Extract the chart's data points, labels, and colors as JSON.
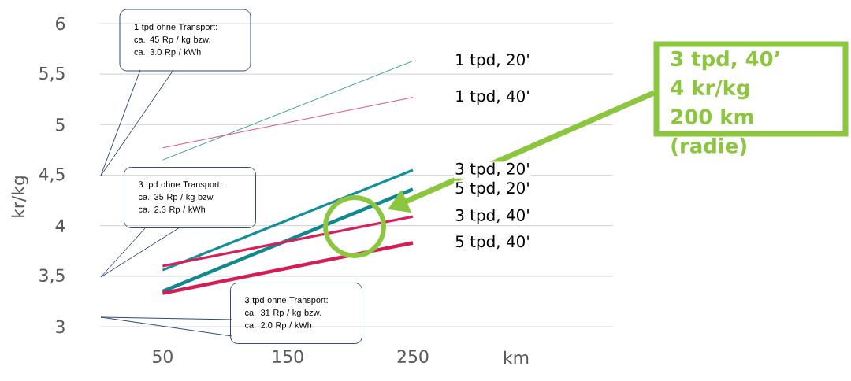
{
  "chart_data": {
    "type": "line",
    "ylabel": "kr/kg",
    "xlabel": "km",
    "xlim": [
      0,
      410
    ],
    "ylim": [
      3,
      6
    ],
    "xticks": [
      50,
      150,
      250
    ],
    "yticks": [
      3,
      {
        "value": 3.5,
        "label": "3,5"
      },
      4,
      {
        "value": 4.5,
        "label": "4,5"
      },
      5,
      {
        "value": 5.5,
        "label": "5,5"
      },
      6
    ],
    "grid": "y",
    "x": [
      50,
      250
    ],
    "series": [
      {
        "name": "1 tpd, 20'",
        "color": "#3a9e9e",
        "values": [
          4.65,
          5.63
        ]
      },
      {
        "name": "1 tpd, 40'",
        "color": "#d9557e",
        "values": [
          4.77,
          5.27
        ]
      },
      {
        "name": "3 tpd, 20'",
        "color": "#128f98",
        "values": [
          3.56,
          4.55
        ]
      },
      {
        "name": "5 tpd, 20'",
        "color": "#0f8890",
        "values": [
          3.35,
          4.36
        ]
      },
      {
        "name": "3 tpd, 40'",
        "color": "#d81f5a",
        "values": [
          3.6,
          4.09
        ]
      },
      {
        "name": "5 tpd, 40'",
        "color": "#d41c55",
        "values": [
          3.33,
          3.83
        ]
      }
    ],
    "annotations": [
      "1 tpd ohne Transport:",
      "ca.  45 Rp / kg bzw.",
      "ca. 3.0 Rp / kWh",
      "3 tpd ohne Transport:",
      "ca.  35 Rp / kg bzw.",
      "ca. 2.3 Rp / kWh",
      "3 tpd ohne Transport:",
      "ca.  31 Rp / kg bzw.",
      "ca. 2.0 Rp / kWh",
      "3 tpd, 40’",
      "4 kr/kg",
      "200 km",
      "(radie)"
    ]
  }
}
